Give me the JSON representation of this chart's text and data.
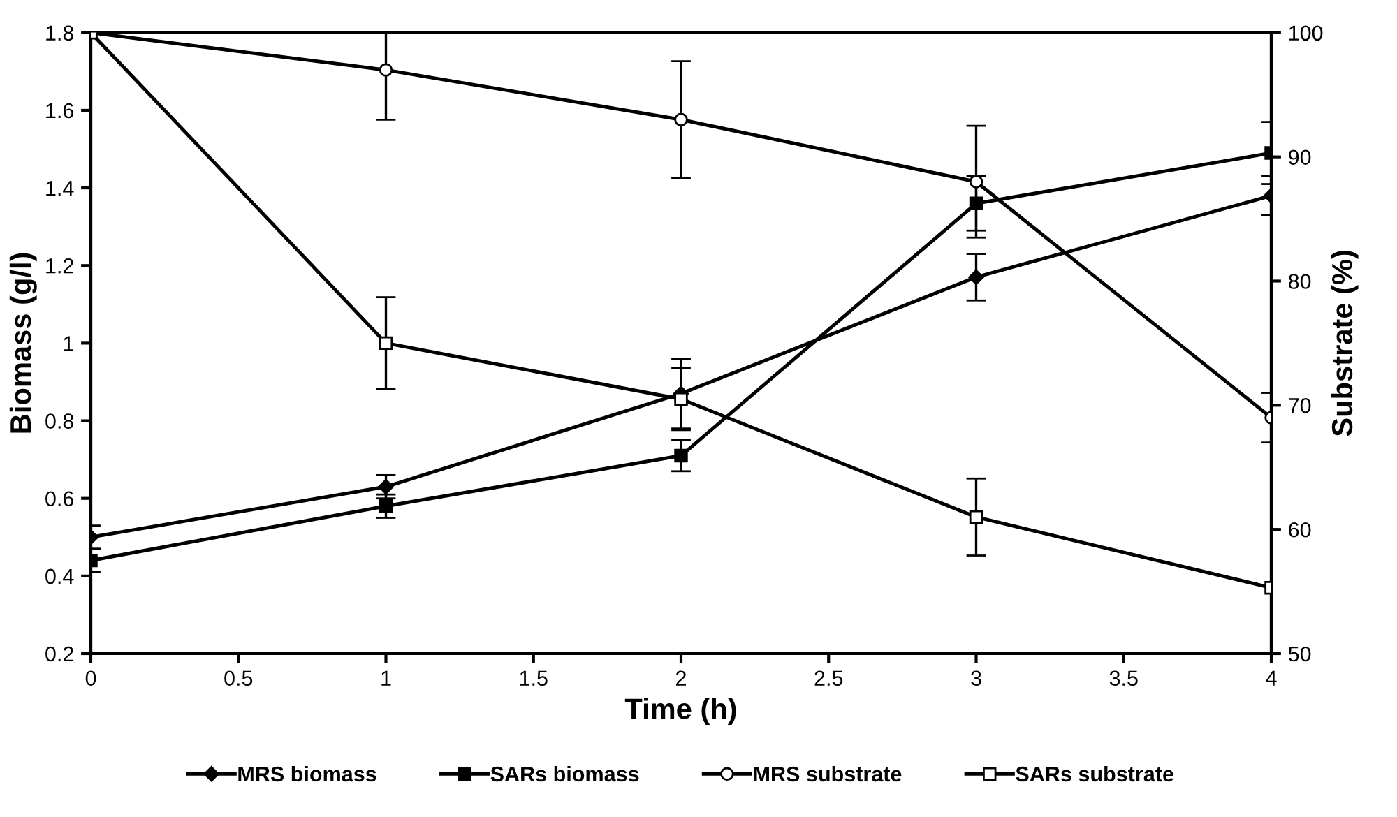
{
  "chart_data": {
    "type": "line",
    "xlabel": "Time (h)",
    "ylabel": "Biomass (g/l)",
    "y2label": "Substrate (%)",
    "x": [
      0,
      1,
      2,
      3,
      4
    ],
    "xlim": [
      0,
      4
    ],
    "xticks": [
      0,
      0.5,
      1,
      1.5,
      2,
      2.5,
      3,
      3.5,
      4
    ],
    "ylim": [
      0.2,
      1.8
    ],
    "yticks": [
      0.2,
      0.4,
      0.6,
      0.8,
      1,
      1.2,
      1.4,
      1.6,
      1.8
    ],
    "y2lim": [
      50,
      100
    ],
    "y2ticks": [
      50,
      60,
      70,
      80,
      90,
      100
    ],
    "grid": false,
    "legend": "bottom",
    "line_style": "solid",
    "series": [
      {
        "name": "MRS biomass",
        "color": "#000000",
        "marker": "diamond",
        "values": [
          0.5,
          0.63,
          0.87,
          1.17,
          1.38
        ],
        "errors": [
          0.03,
          0.03,
          0.09,
          0.06,
          0.05
        ]
      },
      {
        "name": "SARs biomass",
        "color": "#000000",
        "marker": "square",
        "values": [
          0.44,
          0.58,
          0.71,
          1.36,
          1.49
        ],
        "errors": [
          0.03,
          0.03,
          0.04,
          0.07,
          0.08
        ]
      },
      {
        "name": "MRS substrate",
        "color": "#000000",
        "marker": "circle",
        "axis": "y2",
        "values": [
          100,
          97,
          93,
          88,
          69
        ],
        "errors": [
          null,
          4,
          4.7,
          4.5,
          2
        ]
      },
      {
        "name": "SARs substrate",
        "color": "#000000",
        "marker": "square",
        "axis": "y2",
        "values": [
          100,
          75,
          70.5,
          61,
          55.3
        ],
        "errors": [
          null,
          3.7,
          2.5,
          3.1,
          null
        ]
      }
    ]
  }
}
